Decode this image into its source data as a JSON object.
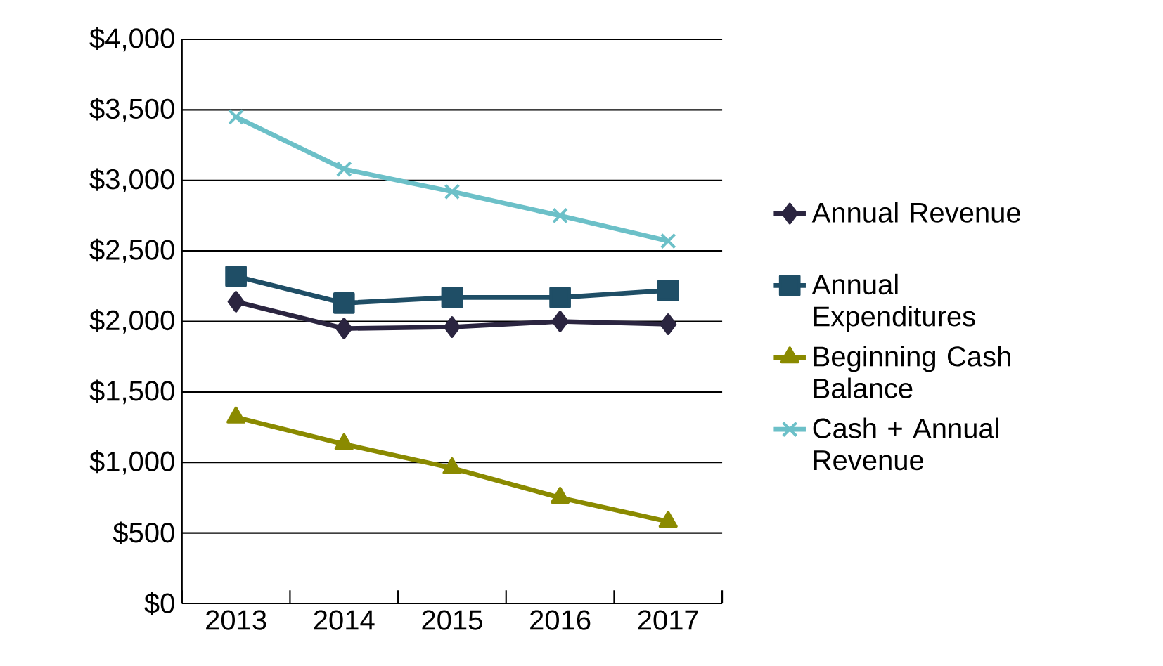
{
  "chart_data": {
    "type": "line",
    "categories": [
      "2013",
      "2014",
      "2015",
      "2016",
      "2017"
    ],
    "series": [
      {
        "name": "Annual Revenue",
        "color": "#2b2540",
        "marker": "diamond",
        "values": [
          2140,
          1950,
          1960,
          2000,
          1980
        ]
      },
      {
        "name": "Annual Expenditures",
        "color": "#1f4e66",
        "marker": "square",
        "values": [
          2320,
          2130,
          2170,
          2170,
          2220
        ]
      },
      {
        "name": "Beginning Cash Balance",
        "color": "#8a8a00",
        "marker": "triangle",
        "values": [
          1320,
          1130,
          960,
          750,
          580
        ]
      },
      {
        "name": "Cash + Annual Revenue",
        "color": "#6cc0c8",
        "marker": "cross",
        "values": [
          3450,
          3080,
          2920,
          2750,
          2570
        ]
      }
    ],
    "ylim": [
      0,
      4000
    ],
    "yticks": [
      {
        "value": 0,
        "label": "$0"
      },
      {
        "value": 500,
        "label": "$500"
      },
      {
        "value": 1000,
        "label": "$1,000"
      },
      {
        "value": 1500,
        "label": "$1,500"
      },
      {
        "value": 2000,
        "label": "$2,000"
      },
      {
        "value": 2500,
        "label": "$2,500"
      },
      {
        "value": 3000,
        "label": "$3,000"
      },
      {
        "value": 3500,
        "label": "$3,500"
      },
      {
        "value": 4000,
        "label": "$4,000"
      }
    ],
    "grid": "y",
    "legend": "right",
    "line_style": "solid"
  }
}
